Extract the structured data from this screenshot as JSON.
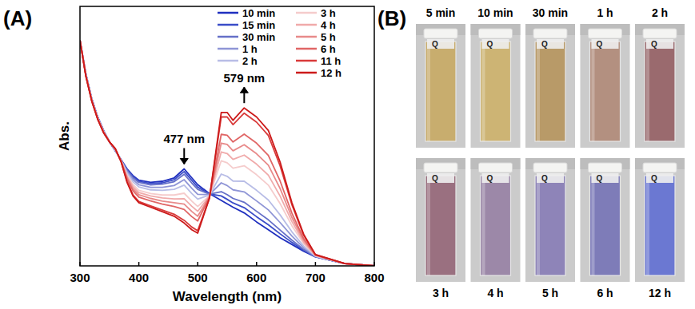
{
  "panels": [
    "(A)",
    "(B)"
  ],
  "chart_data": {
    "type": "line",
    "x_label": "Wavelength (nm)",
    "y_label": "Abs.",
    "x": [
      300,
      310,
      320,
      330,
      340,
      350,
      360,
      370,
      380,
      390,
      400,
      420,
      440,
      460,
      477,
      490,
      500,
      520,
      540,
      550,
      560,
      579,
      600,
      620,
      640,
      660,
      680,
      700,
      750,
      800
    ],
    "xlim": [
      300,
      800
    ],
    "xticks": [
      300,
      400,
      500,
      600,
      700,
      800
    ],
    "ylim": [
      0,
      1.15
    ],
    "tick_labels": "x",
    "legend": "top-right",
    "annotations": [
      {
        "text": "477 nm",
        "x": 477
      },
      {
        "text": "579 nm",
        "x": 579
      }
    ],
    "series": [
      {
        "name": "10 min",
        "color": "#1f2fbf",
        "values": [
          1.0,
          0.85,
          0.74,
          0.66,
          0.6,
          0.55,
          0.51,
          0.47,
          0.43,
          0.4,
          0.38,
          0.37,
          0.375,
          0.39,
          0.43,
          0.39,
          0.36,
          0.32,
          0.29,
          0.275,
          0.26,
          0.235,
          0.195,
          0.16,
          0.125,
          0.095,
          0.065,
          0.04,
          0.01,
          0
        ]
      },
      {
        "name": "15 min",
        "color": "#3a4cc8",
        "values": [
          1.0,
          0.85,
          0.74,
          0.66,
          0.6,
          0.55,
          0.51,
          0.47,
          0.427,
          0.396,
          0.375,
          0.365,
          0.368,
          0.382,
          0.418,
          0.379,
          0.349,
          0.319,
          0.31,
          0.295,
          0.279,
          0.258,
          0.218,
          0.182,
          0.142,
          0.104,
          0.069,
          0.04,
          0.01,
          0
        ]
      },
      {
        "name": "30 min",
        "color": "#6670c8",
        "values": [
          1.0,
          0.849,
          0.739,
          0.659,
          0.599,
          0.55,
          0.511,
          0.469,
          0.424,
          0.391,
          0.37,
          0.359,
          0.362,
          0.373,
          0.406,
          0.367,
          0.339,
          0.318,
          0.329,
          0.316,
          0.299,
          0.282,
          0.242,
          0.204,
          0.159,
          0.114,
          0.073,
          0.041,
          0.01,
          0
        ]
      },
      {
        "name": "1 h",
        "color": "#8f95d6",
        "values": [
          1.0,
          0.848,
          0.738,
          0.658,
          0.598,
          0.55,
          0.512,
          0.468,
          0.418,
          0.382,
          0.36,
          0.348,
          0.348,
          0.356,
          0.382,
          0.344,
          0.317,
          0.316,
          0.368,
          0.356,
          0.337,
          0.328,
          0.288,
          0.248,
          0.192,
          0.132,
          0.08,
          0.042,
          0.01,
          0
        ]
      },
      {
        "name": "2 h",
        "color": "#b8bde6",
        "values": [
          1.0,
          0.847,
          0.737,
          0.657,
          0.597,
          0.55,
          0.513,
          0.467,
          0.412,
          0.373,
          0.35,
          0.337,
          0.335,
          0.339,
          0.358,
          0.321,
          0.296,
          0.314,
          0.407,
          0.397,
          0.376,
          0.375,
          0.335,
          0.292,
          0.226,
          0.151,
          0.088,
          0.043,
          0.01,
          0
        ]
      },
      {
        "name": "3 h",
        "color": "#f5cccc",
        "values": [
          1.0,
          0.846,
          0.736,
          0.656,
          0.596,
          0.55,
          0.515,
          0.466,
          0.403,
          0.36,
          0.335,
          0.321,
          0.314,
          0.314,
          0.322,
          0.287,
          0.263,
          0.311,
          0.466,
          0.457,
          0.433,
          0.444,
          0.404,
          0.358,
          0.276,
          0.178,
          0.099,
          0.045,
          0.01,
          0
        ]
      },
      {
        "name": "4 h",
        "color": "#f0aaaa",
        "values": [
          1.0,
          0.845,
          0.735,
          0.655,
          0.595,
          0.55,
          0.516,
          0.465,
          0.397,
          0.351,
          0.325,
          0.31,
          0.301,
          0.297,
          0.298,
          0.264,
          0.242,
          0.309,
          0.505,
          0.498,
          0.472,
          0.491,
          0.451,
          0.402,
          0.309,
          0.197,
          0.106,
          0.046,
          0.01,
          0
        ]
      },
      {
        "name": "5 h",
        "color": "#e88a8a",
        "values": [
          1.0,
          0.844,
          0.734,
          0.654,
          0.594,
          0.55,
          0.517,
          0.464,
          0.391,
          0.342,
          0.315,
          0.299,
          0.287,
          0.28,
          0.274,
          0.241,
          0.22,
          0.307,
          0.544,
          0.538,
          0.51,
          0.537,
          0.497,
          0.446,
          0.343,
          0.215,
          0.114,
          0.047,
          0.01,
          0
        ]
      },
      {
        "name": "6 h",
        "color": "#e06666",
        "values": [
          1.0,
          0.843,
          0.733,
          0.653,
          0.593,
          0.55,
          0.518,
          0.463,
          0.385,
          0.333,
          0.305,
          0.288,
          0.274,
          0.263,
          0.25,
          0.218,
          0.199,
          0.305,
          0.583,
          0.579,
          0.549,
          0.584,
          0.544,
          0.49,
          0.376,
          0.234,
          0.121,
          0.048,
          0.01,
          0
        ]
      },
      {
        "name": "11 h",
        "color": "#d93a3a",
        "values": [
          1.0,
          0.841,
          0.731,
          0.651,
          0.591,
          0.55,
          0.52,
          0.461,
          0.373,
          0.315,
          0.285,
          0.266,
          0.247,
          0.229,
          0.202,
          0.172,
          0.156,
          0.301,
          0.66,
          0.66,
          0.626,
          0.677,
          0.637,
          0.578,
          0.443,
          0.271,
          0.136,
          0.05,
          0.01,
          0
        ]
      },
      {
        "name": "12 h",
        "color": "#cc1a1a",
        "values": [
          1.0,
          0.84,
          0.73,
          0.65,
          0.59,
          0.55,
          0.52,
          0.46,
          0.37,
          0.31,
          0.28,
          0.26,
          0.24,
          0.22,
          0.19,
          0.16,
          0.145,
          0.3,
          0.68,
          0.68,
          0.645,
          0.7,
          0.66,
          0.6,
          0.46,
          0.28,
          0.14,
          0.05,
          0.01,
          0
        ]
      }
    ]
  },
  "photos": {
    "cap_text": "Q",
    "items": [
      {
        "label": "5 min",
        "color": "#c8ad6e"
      },
      {
        "label": "10 min",
        "color": "#cdb474"
      },
      {
        "label": "30 min",
        "color": "#b89a68"
      },
      {
        "label": "1 h",
        "color": "#b39080"
      },
      {
        "label": "2 h",
        "color": "#9a6a6e"
      },
      {
        "label": "3 h",
        "color": "#9a7080"
      },
      {
        "label": "4 h",
        "color": "#9c88a8"
      },
      {
        "label": "5 h",
        "color": "#8e84b8"
      },
      {
        "label": "6 h",
        "color": "#7e7cb8"
      },
      {
        "label": "12 h",
        "color": "#6b78d2"
      }
    ]
  }
}
